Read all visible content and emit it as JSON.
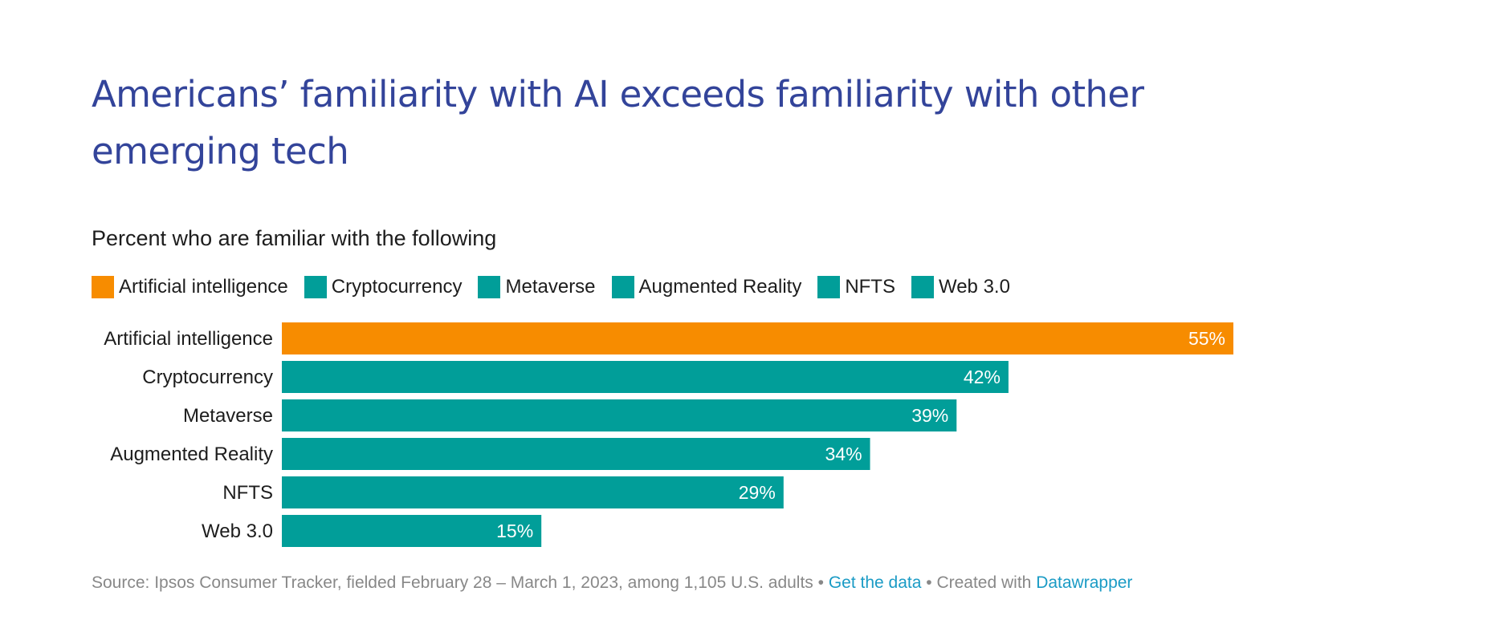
{
  "chart_data": {
    "type": "bar",
    "orientation": "horizontal",
    "title": "Americans’ familiarity with AI exceeds familiarity with other emerging tech",
    "subtitle": "Percent who are familiar with the following",
    "categories": [
      "Artificial intelligence",
      "Cryptocurrency",
      "Metaverse",
      "Augmented Reality",
      "NFTS",
      "Web 3.0"
    ],
    "values": [
      55,
      42,
      39,
      34,
      29,
      15
    ],
    "value_labels": [
      "55%",
      "42%",
      "39%",
      "34%",
      "29%",
      "15%"
    ],
    "colors": [
      "#f78c00",
      "#019e99",
      "#019e99",
      "#019e99",
      "#019e99",
      "#019e99"
    ],
    "xlim": [
      0,
      55
    ],
    "legend": [
      {
        "label": "Artificial intelligence",
        "color": "#f78c00"
      },
      {
        "label": "Cryptocurrency",
        "color": "#019e99"
      },
      {
        "label": "Metaverse",
        "color": "#019e99"
      },
      {
        "label": "Augmented Reality",
        "color": "#019e99"
      },
      {
        "label": "NFTS",
        "color": "#019e99"
      },
      {
        "label": "Web 3.0",
        "color": "#019e99"
      }
    ],
    "legend_position": "top-left"
  },
  "footer": {
    "source": "Source: Ipsos Consumer Tracker, fielded February 28 – March 1, 2023, among 1,105 U.S. adults",
    "separator1": " • ",
    "get_data": "Get the data",
    "separator2": " • Created with ",
    "created_with": "Datawrapper"
  }
}
